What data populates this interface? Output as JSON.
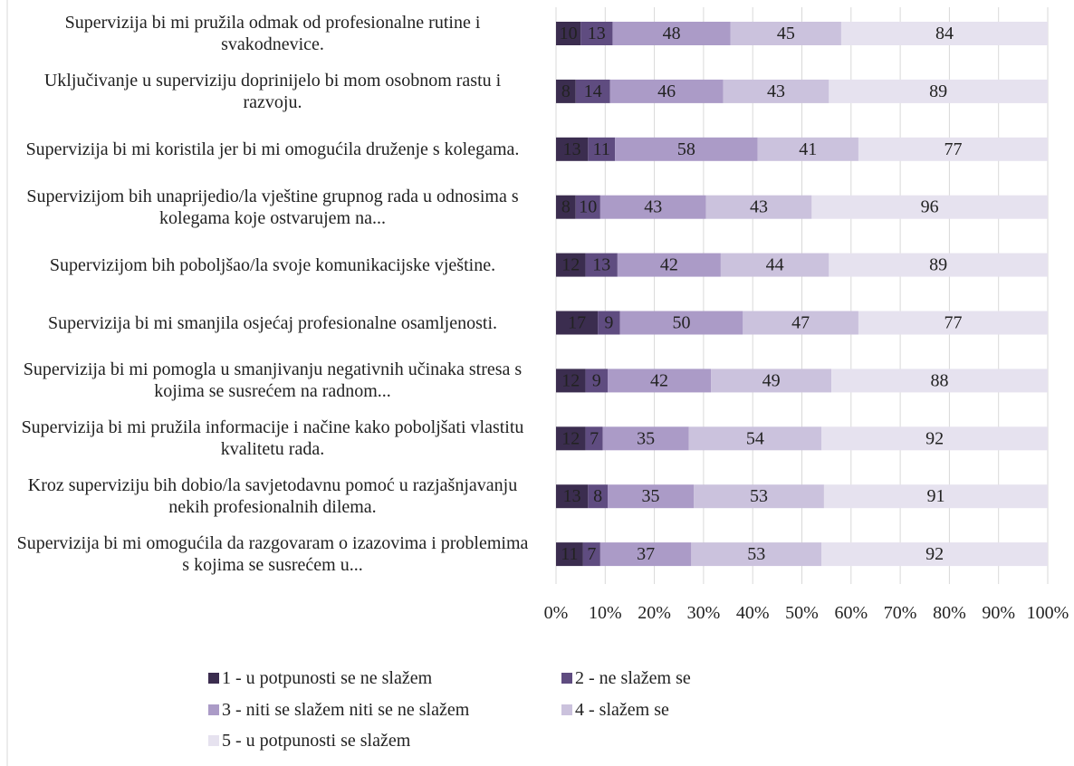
{
  "chart_data": {
    "type": "bar",
    "orientation": "horizontal",
    "stacked": "percent",
    "categories": [
      "Supervizija bi mi pružila odmak od profesionalne rutine i svakodnevice.",
      "Uključivanje u superviziju doprinijelo bi mom osobnom rastu i razvoju.",
      "Supervizija bi mi koristila jer bi mi omogućila druženje s kolegama.",
      "Supervizijom bih unaprijedio/la vještine grupnog rada u odnosima s kolegama koje ostvarujem na...",
      "Supervizijom bih poboljšao/la svoje komunikacijske vještine.",
      "Supervizija bi mi smanjila osjećaj profesionalne osamljenosti.",
      "Supervizija bi mi pomogla u smanjivanju negativnih učinaka stresa s kojima se susrećem na radnom...",
      "Supervizija bi mi pružila informacije i načine kako poboljšati vlastitu kvalitetu rada.",
      "Kroz superviziju bih dobio/la savjetodavnu pomoć u razjašnjavanju nekih profesionalnih dilema.",
      "Supervizija bi mi omogućila da razgovaram o izazovima i problemima s kojima se susrećem u..."
    ],
    "series": [
      {
        "name": "1 - u potpunosti se ne slažem",
        "color": "#3b2d4f",
        "values": [
          10,
          8,
          13,
          8,
          12,
          17,
          12,
          12,
          13,
          11
        ]
      },
      {
        "name": "2 - ne slažem se",
        "color": "#5f4c80",
        "values": [
          13,
          14,
          11,
          10,
          13,
          9,
          9,
          7,
          8,
          7
        ]
      },
      {
        "name": "3 - niti se slažem niti se ne slažem",
        "color": "#ab9bc7",
        "values": [
          48,
          46,
          58,
          43,
          42,
          50,
          42,
          35,
          35,
          37
        ]
      },
      {
        "name": "4 - slažem se",
        "color": "#cbc2dd",
        "values": [
          45,
          43,
          41,
          43,
          44,
          47,
          49,
          54,
          53,
          53
        ]
      },
      {
        "name": "5 - u potpunosti se slažem",
        "color": "#e6e2ef",
        "values": [
          84,
          89,
          77,
          96,
          89,
          77,
          88,
          92,
          91,
          92
        ]
      }
    ],
    "xlim": [
      0,
      100
    ],
    "xticks": [
      {
        "value": 0,
        "label": "0%"
      },
      {
        "value": 10,
        "label": "10%"
      },
      {
        "value": 20,
        "label": "20%"
      },
      {
        "value": 30,
        "label": "30%"
      },
      {
        "value": 40,
        "label": "40%"
      },
      {
        "value": 50,
        "label": "50%"
      },
      {
        "value": 60,
        "label": "60%"
      },
      {
        "value": 70,
        "label": "70%"
      },
      {
        "value": 80,
        "label": "80%"
      },
      {
        "value": 90,
        "label": "90%"
      },
      {
        "value": 100,
        "label": "100%"
      }
    ],
    "grid": true,
    "legend": "bottom"
  }
}
